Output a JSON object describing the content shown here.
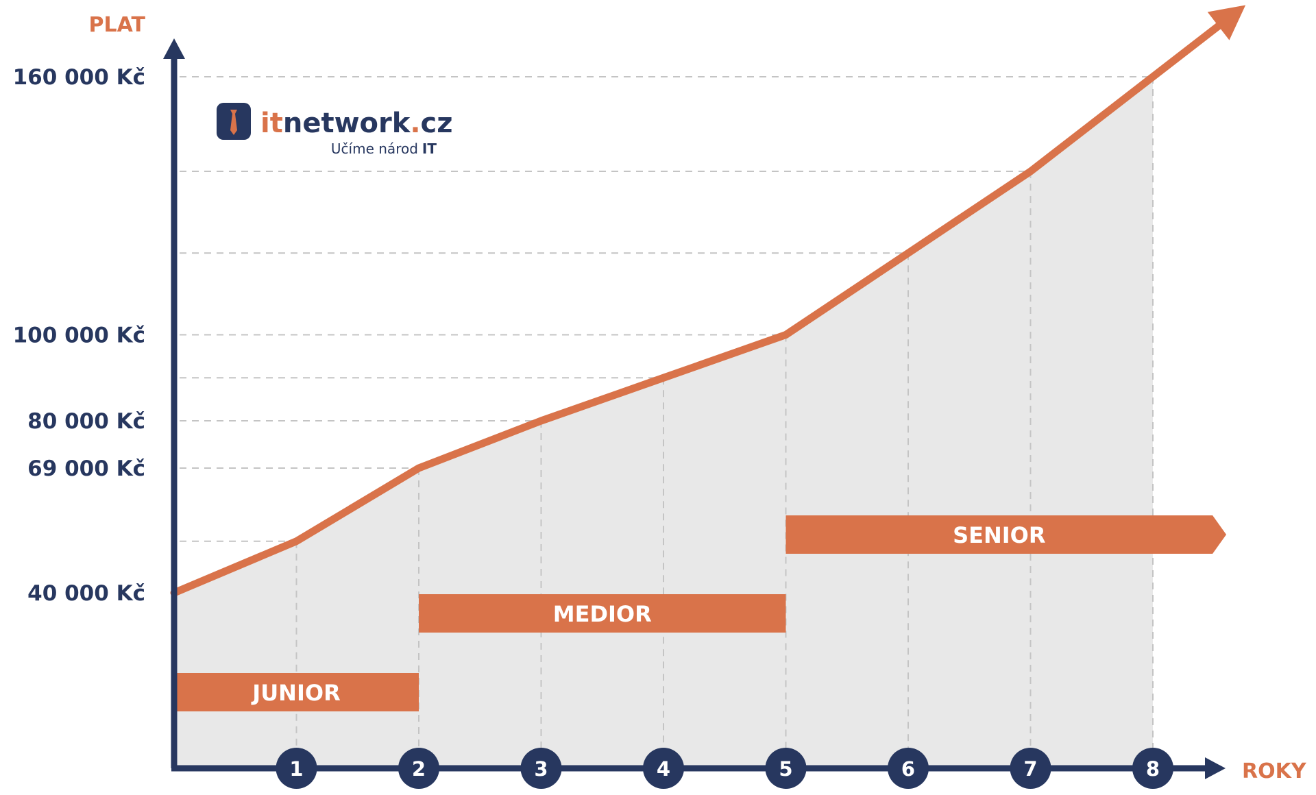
{
  "chart_data": {
    "type": "line",
    "x_title": "ROKY",
    "y_title": "PLAT",
    "x_ticks": [
      "1",
      "2",
      "3",
      "4",
      "5",
      "6",
      "7",
      "8"
    ],
    "y_tick_labels": [
      {
        "value": 40000,
        "label": "40 000 Kč"
      },
      {
        "value": 69000,
        "label": "69 000 Kč"
      },
      {
        "value": 80000,
        "label": "80 000 Kč"
      },
      {
        "value": 100000,
        "label": "100 000 Kč"
      },
      {
        "value": 160000,
        "label": "160 000 Kč"
      }
    ],
    "series": [
      {
        "points": [
          [
            0,
            40000
          ],
          [
            1,
            52000
          ],
          [
            2,
            69000
          ],
          [
            3,
            80000
          ],
          [
            4,
            90000
          ],
          [
            5,
            100000
          ],
          [
            6,
            119000
          ],
          [
            7,
            138000
          ],
          [
            8,
            160000
          ]
        ]
      }
    ],
    "gridlines_y": [
      52000,
      69000,
      80000,
      90000,
      100000,
      119000,
      138000,
      160000
    ],
    "bands": [
      {
        "label": "JUNIOR",
        "from": 0,
        "to": 2,
        "level": 1
      },
      {
        "label": "MEDIOR",
        "from": 2,
        "to": 5,
        "level": 2
      },
      {
        "label": "SENIOR",
        "from": 5,
        "to": 8.6,
        "level": 3
      }
    ],
    "grid": true,
    "colors": {
      "line": "#d9734a",
      "axis": "#27375f",
      "fill": "#e8e8e8",
      "grid": "#c4c4c4"
    }
  },
  "logo": {
    "text_orange": "it",
    "text_blue": "network",
    "dot": ".",
    "tld": "cz",
    "tagline": "Učíme národ",
    "tagline_bold": "IT"
  }
}
